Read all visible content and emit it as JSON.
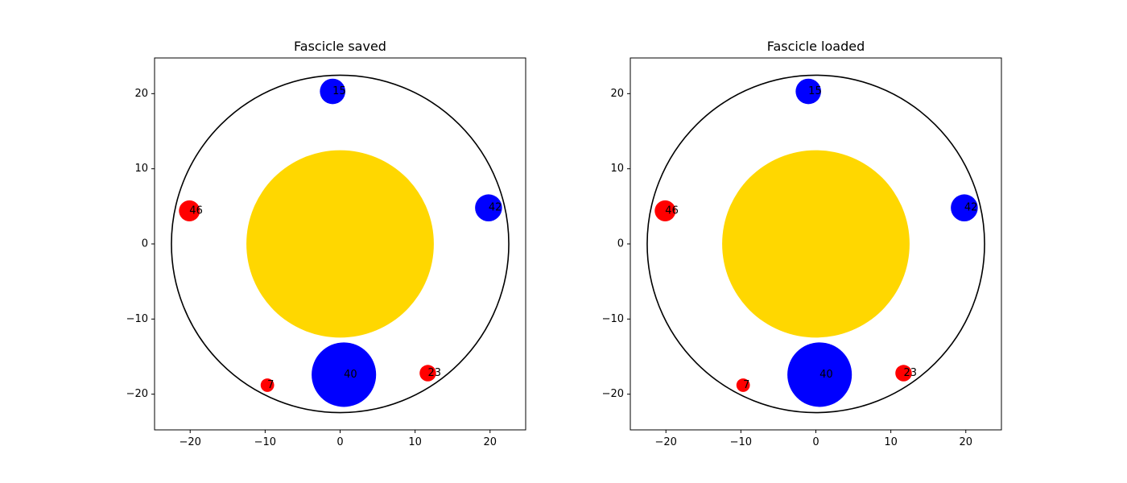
{
  "chart_data": [
    {
      "type": "circle",
      "title": "Fascicle saved",
      "xlim": [
        -24.75,
        24.75
      ],
      "ylim": [
        -24.75,
        24.75
      ],
      "xticks": [
        {
          "value": -20,
          "label": "−20"
        },
        {
          "value": -10,
          "label": "−10"
        },
        0,
        10,
        20
      ],
      "yticks": [
        {
          "value": -20,
          "label": "−20"
        },
        {
          "value": -10,
          "label": "−10"
        },
        0,
        10,
        20
      ],
      "boundary": {
        "x": 0,
        "y": 0,
        "r": 22.5,
        "color": "#000000"
      },
      "core": {
        "x": 0,
        "y": 0,
        "r": 12.5,
        "color": "#ffd700"
      },
      "fascicles": [
        {
          "label": "15",
          "x": -1.0,
          "y": 20.3,
          "r": 1.7,
          "color": "#0000ff"
        },
        {
          "label": "42",
          "x": 19.8,
          "y": 4.8,
          "r": 1.8,
          "color": "#0000ff"
        },
        {
          "label": "46",
          "x": -20.1,
          "y": 4.4,
          "r": 1.4,
          "color": "#ff0000"
        },
        {
          "label": "40",
          "x": 0.5,
          "y": -17.4,
          "r": 4.3,
          "color": "#0000ff"
        },
        {
          "label": "7",
          "x": -9.7,
          "y": -18.8,
          "r": 0.9,
          "color": "#ff0000"
        },
        {
          "label": "23",
          "x": 11.7,
          "y": -17.2,
          "r": 1.1,
          "color": "#ff0000"
        }
      ]
    },
    {
      "type": "circle",
      "title": "Fascicle loaded",
      "xlim": [
        -24.75,
        24.75
      ],
      "ylim": [
        -24.75,
        24.75
      ],
      "xticks": [
        {
          "value": -20,
          "label": "−20"
        },
        {
          "value": -10,
          "label": "−10"
        },
        0,
        10,
        20
      ],
      "yticks": [
        {
          "value": -20,
          "label": "−20"
        },
        {
          "value": -10,
          "label": "−10"
        },
        0,
        10,
        20
      ],
      "boundary": {
        "x": 0,
        "y": 0,
        "r": 22.5,
        "color": "#000000"
      },
      "core": {
        "x": 0,
        "y": 0,
        "r": 12.5,
        "color": "#ffd700"
      },
      "fascicles": [
        {
          "label": "15",
          "x": -1.0,
          "y": 20.3,
          "r": 1.7,
          "color": "#0000ff"
        },
        {
          "label": "42",
          "x": 19.8,
          "y": 4.8,
          "r": 1.8,
          "color": "#0000ff"
        },
        {
          "label": "46",
          "x": -20.1,
          "y": 4.4,
          "r": 1.4,
          "color": "#ff0000"
        },
        {
          "label": "40",
          "x": 0.5,
          "y": -17.4,
          "r": 4.3,
          "color": "#0000ff"
        },
        {
          "label": "7",
          "x": -9.7,
          "y": -18.8,
          "r": 0.9,
          "color": "#ff0000"
        },
        {
          "label": "23",
          "x": 11.7,
          "y": -17.2,
          "r": 1.1,
          "color": "#ff0000"
        }
      ]
    }
  ]
}
